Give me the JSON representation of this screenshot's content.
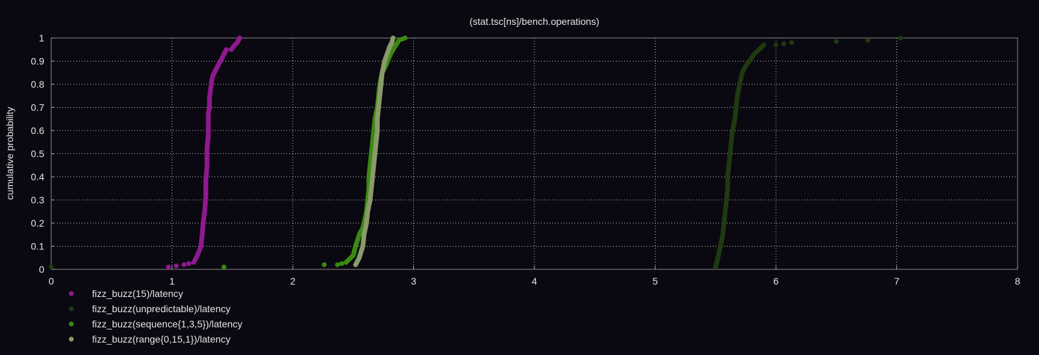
{
  "chart_data": {
    "type": "scatter",
    "title": "(stat.tsc[ns]/bench.operations)",
    "xlabel": "",
    "ylabel": "cumulative probability",
    "xlim": [
      0,
      8
    ],
    "ylim": [
      0,
      1
    ],
    "x_ticks": [
      0,
      1,
      2,
      3,
      4,
      5,
      6,
      7,
      8
    ],
    "y_ticks": [
      0,
      0.1,
      0.2,
      0.3,
      0.4,
      0.5,
      0.6,
      0.7,
      0.8,
      0.9,
      1
    ],
    "x_tick_labels": [
      "0",
      "1",
      "2",
      "3",
      "4",
      "5",
      "6",
      "7",
      "8"
    ],
    "y_tick_labels": [
      "0",
      "0.1",
      "0.2",
      "0.3",
      "0.4",
      "0.5",
      "0.6",
      "0.7",
      "0.8",
      "0.9",
      "1"
    ],
    "grid": true,
    "legend_position": "bottom-left",
    "series": [
      {
        "name": "fizz_buzz(15)/latency",
        "color": "#8e1a8e",
        "x": [
          0.97,
          1.1,
          1.18,
          1.21,
          1.24,
          1.25,
          1.26,
          1.27,
          1.28,
          1.28,
          1.29,
          1.29,
          1.3,
          1.3,
          1.3,
          1.3,
          1.31,
          1.31,
          1.32,
          1.33,
          1.34,
          1.36,
          1.38,
          1.4,
          1.43,
          1.45,
          1.49,
          1.52,
          1.54,
          1.56
        ],
        "y": [
          0.01,
          0.02,
          0.03,
          0.06,
          0.1,
          0.15,
          0.21,
          0.25,
          0.32,
          0.38,
          0.45,
          0.52,
          0.58,
          0.62,
          0.65,
          0.67,
          0.7,
          0.74,
          0.78,
          0.82,
          0.84,
          0.86,
          0.88,
          0.9,
          0.93,
          0.95,
          0.95,
          0.97,
          0.98,
          1.0
        ]
      },
      {
        "name": "fizz_buzz(unpredictable)/latency",
        "color": "#1f3a10",
        "x": [
          0.0,
          5.5,
          5.52,
          5.54,
          5.56,
          5.57,
          5.58,
          5.59,
          5.6,
          5.6,
          5.61,
          5.62,
          5.63,
          5.64,
          5.66,
          5.67,
          5.68,
          5.7,
          5.72,
          5.75,
          5.78,
          5.82,
          5.86,
          5.9,
          6.0,
          6.13,
          6.5,
          6.76,
          7.03
        ],
        "y": [
          0.01,
          0.01,
          0.05,
          0.1,
          0.15,
          0.2,
          0.25,
          0.3,
          0.35,
          0.4,
          0.45,
          0.5,
          0.55,
          0.6,
          0.65,
          0.7,
          0.75,
          0.8,
          0.85,
          0.88,
          0.9,
          0.93,
          0.95,
          0.97,
          0.97,
          0.98,
          0.985,
          0.99,
          1.0
        ]
      },
      {
        "name": "fizz_buzz(sequence{1,3,5})/latency",
        "color": "#3a8a12",
        "x": [
          1.43,
          2.26,
          2.37,
          2.44,
          2.5,
          2.52,
          2.55,
          2.58,
          2.59,
          2.61,
          2.62,
          2.63,
          2.63,
          2.64,
          2.65,
          2.66,
          2.67,
          2.68,
          2.7,
          2.71,
          2.72,
          2.74,
          2.77,
          2.8,
          2.83,
          2.88,
          2.93
        ],
        "y": [
          0.01,
          0.02,
          0.02,
          0.03,
          0.06,
          0.1,
          0.15,
          0.18,
          0.2,
          0.25,
          0.3,
          0.35,
          0.4,
          0.45,
          0.5,
          0.55,
          0.6,
          0.65,
          0.7,
          0.75,
          0.8,
          0.85,
          0.88,
          0.92,
          0.95,
          0.99,
          1.0
        ]
      },
      {
        "name": "fizz_buzz(range{0,15,1})/latency",
        "color": "#8a9a6a",
        "x": [
          2.52,
          2.55,
          2.58,
          2.59,
          2.61,
          2.62,
          2.64,
          2.65,
          2.66,
          2.67,
          2.68,
          2.69,
          2.7,
          2.7,
          2.71,
          2.72,
          2.73,
          2.74,
          2.76,
          2.78,
          2.8,
          2.82,
          2.83
        ],
        "y": [
          0.02,
          0.05,
          0.1,
          0.15,
          0.2,
          0.25,
          0.3,
          0.35,
          0.4,
          0.45,
          0.5,
          0.55,
          0.6,
          0.65,
          0.7,
          0.75,
          0.8,
          0.85,
          0.9,
          0.93,
          0.96,
          0.98,
          1.0
        ]
      }
    ]
  }
}
